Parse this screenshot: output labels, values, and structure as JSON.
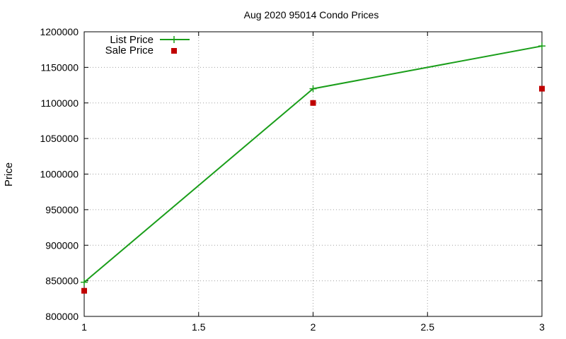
{
  "chart_data": {
    "type": "line",
    "title": "Aug 2020 95014 Condo Prices",
    "xlabel": "",
    "ylabel": "Price",
    "xlim": [
      1,
      3
    ],
    "ylim": [
      800000,
      1200000
    ],
    "x_ticks": [
      "1",
      "1.5",
      "2",
      "2.5",
      "3"
    ],
    "x_tick_values": [
      1,
      1.5,
      2,
      2.5,
      3
    ],
    "y_ticks": [
      "800000",
      "850000",
      "900000",
      "950000",
      "1000000",
      "1050000",
      "1100000",
      "1150000",
      "1200000"
    ],
    "y_tick_values": [
      800000,
      850000,
      900000,
      950000,
      1000000,
      1050000,
      1100000,
      1150000,
      1200000
    ],
    "grid": true,
    "legend_position": "top-left",
    "series": [
      {
        "name": "List Price",
        "style": "line+plus-markers",
        "color": "#1a9e1a",
        "x": [
          1,
          2,
          3
        ],
        "values": [
          848000,
          1120000,
          1180000
        ]
      },
      {
        "name": "Sale Price",
        "style": "square-markers",
        "color": "#c00000",
        "x": [
          1,
          2,
          3
        ],
        "values": [
          836000,
          1100000,
          1120000
        ]
      }
    ]
  }
}
